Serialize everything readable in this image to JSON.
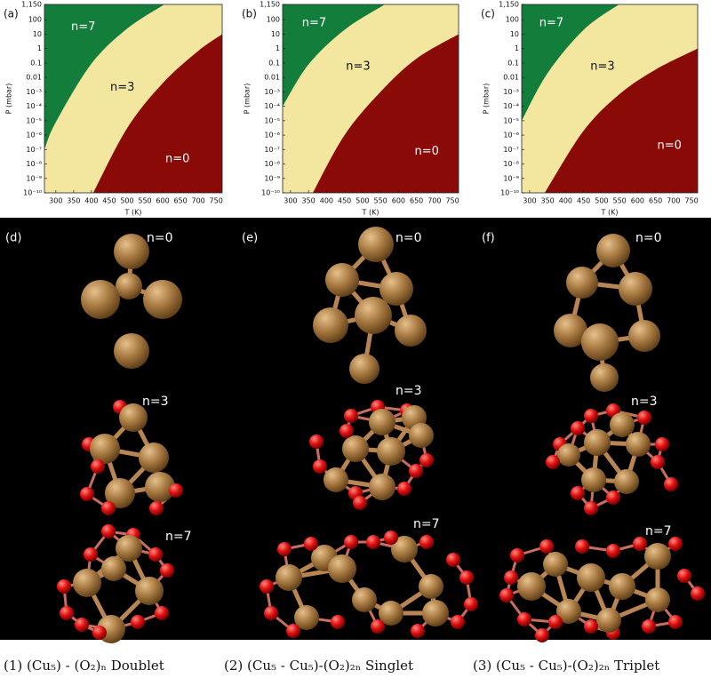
{
  "chart_data": [
    {
      "type": "phase",
      "panel": "(a)",
      "xlabel": "T (K)",
      "ylabel": "P (mbar)",
      "log_y": true,
      "xlim": [
        268,
        767
      ],
      "xticks": [
        300,
        350,
        400,
        450,
        500,
        550,
        600,
        650,
        700,
        750
      ],
      "ylim": [
        1e-10,
        1150
      ],
      "yticks": [
        {
          "value": 1150,
          "label": "1,150"
        },
        100,
        10,
        1,
        0.1,
        0.01,
        {
          "value": 0.001,
          "label": "10⁻³"
        },
        {
          "value": 0.0001,
          "label": "10⁻⁴"
        },
        {
          "value": 1e-05,
          "label": "10⁻⁵"
        },
        {
          "value": 1e-06,
          "label": "10⁻⁶"
        },
        {
          "value": 1e-07,
          "label": "10⁻⁷"
        },
        {
          "value": 1e-08,
          "label": "10⁻⁸"
        },
        {
          "value": 1e-09,
          "label": "10⁻⁹"
        },
        {
          "value": 1e-10,
          "label": "10⁻¹⁰"
        }
      ],
      "regions": [
        {
          "label": "n=7",
          "color": "#137d3c"
        },
        {
          "label": "n=3",
          "color": "#f3e7a0"
        },
        {
          "label": "n=0",
          "color": "#8a0a08"
        }
      ],
      "boundaries": [
        {
          "x": [
            268,
            300,
            400,
            500,
            605
          ],
          "y": [
            1e-07,
            8e-06,
            0.09,
            24,
            1150
          ]
        },
        {
          "x": [
            405,
            500,
            600,
            700,
            767
          ],
          "y": [
            1e-10,
            3e-06,
            0.004,
            0.7,
            10
          ]
        }
      ]
    },
    {
      "type": "phase",
      "panel": "(b)",
      "xlabel": "T (K)",
      "ylabel": "P (mbar)",
      "log_y": true,
      "xlim": [
        278,
        767
      ],
      "xticks": [
        300,
        350,
        400,
        450,
        500,
        550,
        600,
        650,
        700,
        750
      ],
      "ylim": [
        1e-10,
        1150
      ],
      "yticks": [
        {
          "value": 1150,
          "label": "1,150"
        },
        100,
        10,
        1,
        0.1,
        0.01,
        {
          "value": 0.001,
          "label": "10⁻³"
        },
        {
          "value": 0.0001,
          "label": "10⁻⁴"
        },
        {
          "value": 1e-05,
          "label": "10⁻⁵"
        },
        {
          "value": 1e-06,
          "label": "10⁻⁶"
        },
        {
          "value": 1e-07,
          "label": "10⁻⁷"
        },
        {
          "value": 1e-08,
          "label": "10⁻⁸"
        },
        {
          "value": 1e-09,
          "label": "10⁻⁹"
        },
        {
          "value": 1e-10,
          "label": "10⁻¹⁰"
        }
      ],
      "regions": [
        {
          "label": "n=7",
          "color": "#137d3c"
        },
        {
          "label": "n=3",
          "color": "#f3e7a0"
        },
        {
          "label": "n=0",
          "color": "#8a0a08"
        }
      ],
      "boundaries": [
        {
          "x": [
            278,
            350,
            450,
            562
          ],
          "y": [
            0.0001,
            0.08,
            20,
            1150
          ]
        },
        {
          "x": [
            362,
            450,
            550,
            650,
            767
          ],
          "y": [
            1e-10,
            1e-06,
            0.001,
            0.2,
            10
          ]
        }
      ]
    },
    {
      "type": "phase",
      "panel": "(c)",
      "xlabel": "T (K)",
      "ylabel": "P (mbar)",
      "log_y": true,
      "xlim": [
        278,
        767
      ],
      "xticks": [
        300,
        350,
        400,
        450,
        500,
        550,
        600,
        650,
        700,
        750
      ],
      "ylim": [
        1e-10,
        1150
      ],
      "yticks": [
        {
          "value": 1150,
          "label": "1,150"
        },
        100,
        10,
        1,
        0.1,
        0.01,
        {
          "value": 0.001,
          "label": "10⁻³"
        },
        {
          "value": 0.0001,
          "label": "10⁻⁴"
        },
        {
          "value": 1e-05,
          "label": "10⁻⁵"
        },
        {
          "value": 1e-06,
          "label": "10⁻⁶"
        },
        {
          "value": 1e-07,
          "label": "10⁻⁷"
        },
        {
          "value": 1e-08,
          "label": "10⁻⁸"
        },
        {
          "value": 1e-09,
          "label": "10⁻⁹"
        },
        {
          "value": 1e-10,
          "label": "10⁻¹⁰"
        }
      ],
      "regions": [
        {
          "label": "n=7",
          "color": "#137d3c"
        },
        {
          "label": "n=3",
          "color": "#f3e7a0"
        },
        {
          "label": "n=0",
          "color": "#8a0a08"
        }
      ],
      "boundaries": [
        {
          "x": [
            278,
            350,
            450,
            548
          ],
          "y": [
            1e-05,
            0.02,
            20,
            1150
          ]
        },
        {
          "x": [
            342,
            450,
            550,
            650,
            767
          ],
          "y": [
            1e-10,
            2e-06,
            0.0007,
            0.035,
            1
          ]
        }
      ]
    }
  ],
  "structures": [
    {
      "panel": "(d)",
      "labels": [
        "n=0",
        "n=3",
        "n=7"
      ]
    },
    {
      "panel": "(e)",
      "labels": [
        "n=0",
        "n=3",
        "n=7"
      ]
    },
    {
      "panel": "(f)",
      "labels": [
        "n=0",
        "n=3",
        "n=7"
      ]
    }
  ],
  "captions": [
    "(1) (Cu₅) - (O₂)ₙ Doublet",
    "(2) (Cu₅ - Cu₅)-(O₂)₂ₙ Singlet",
    "(3) (Cu₅ - Cu₅)-(O₂)₂ₙ Triplet"
  ]
}
